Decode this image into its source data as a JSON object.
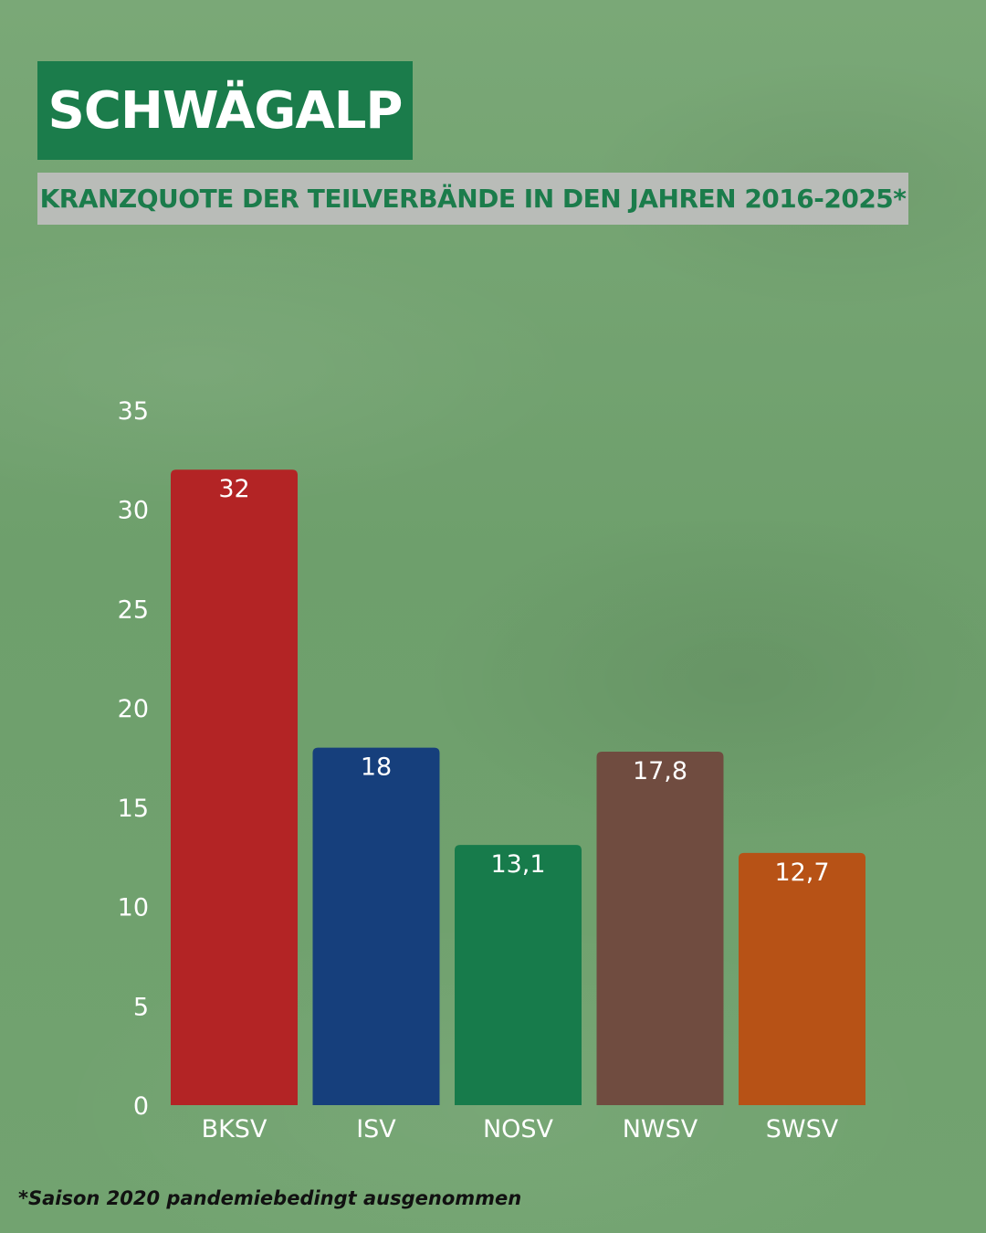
{
  "header": {
    "title": "SCHWÄGALP",
    "subtitle": "KRANZQUOTE DER TEILVERBÄNDE IN DEN JAHREN 2016-2025*"
  },
  "footnote": "*Saison 2020 pandemiebedingt ausgenommen",
  "colors": {
    "title_bg": "#1b7c4b",
    "subtitle_bg": "#b9bcb8",
    "subtitle_text": "#1b7c4b"
  },
  "chart_data": {
    "type": "bar",
    "title": "KRANZQUOTE DER TEILVERBÄNDE IN DEN JAHREN 2016-2025*",
    "xlabel": "",
    "ylabel": "",
    "categories": [
      "BKSV",
      "ISV",
      "NOSV",
      "NWSV",
      "SWSV"
    ],
    "values": [
      32,
      18,
      13.1,
      17.8,
      12.7
    ],
    "value_labels": [
      "32",
      "18",
      "13,1",
      "17,8",
      "12,7"
    ],
    "bar_colors": [
      "#b32425",
      "#163f7c",
      "#177b4b",
      "#704c40",
      "#b75216"
    ],
    "ylim": [
      0,
      35
    ],
    "yticks": [
      0,
      5,
      10,
      15,
      20,
      25,
      30,
      35
    ],
    "grid": false,
    "legend": "none"
  }
}
